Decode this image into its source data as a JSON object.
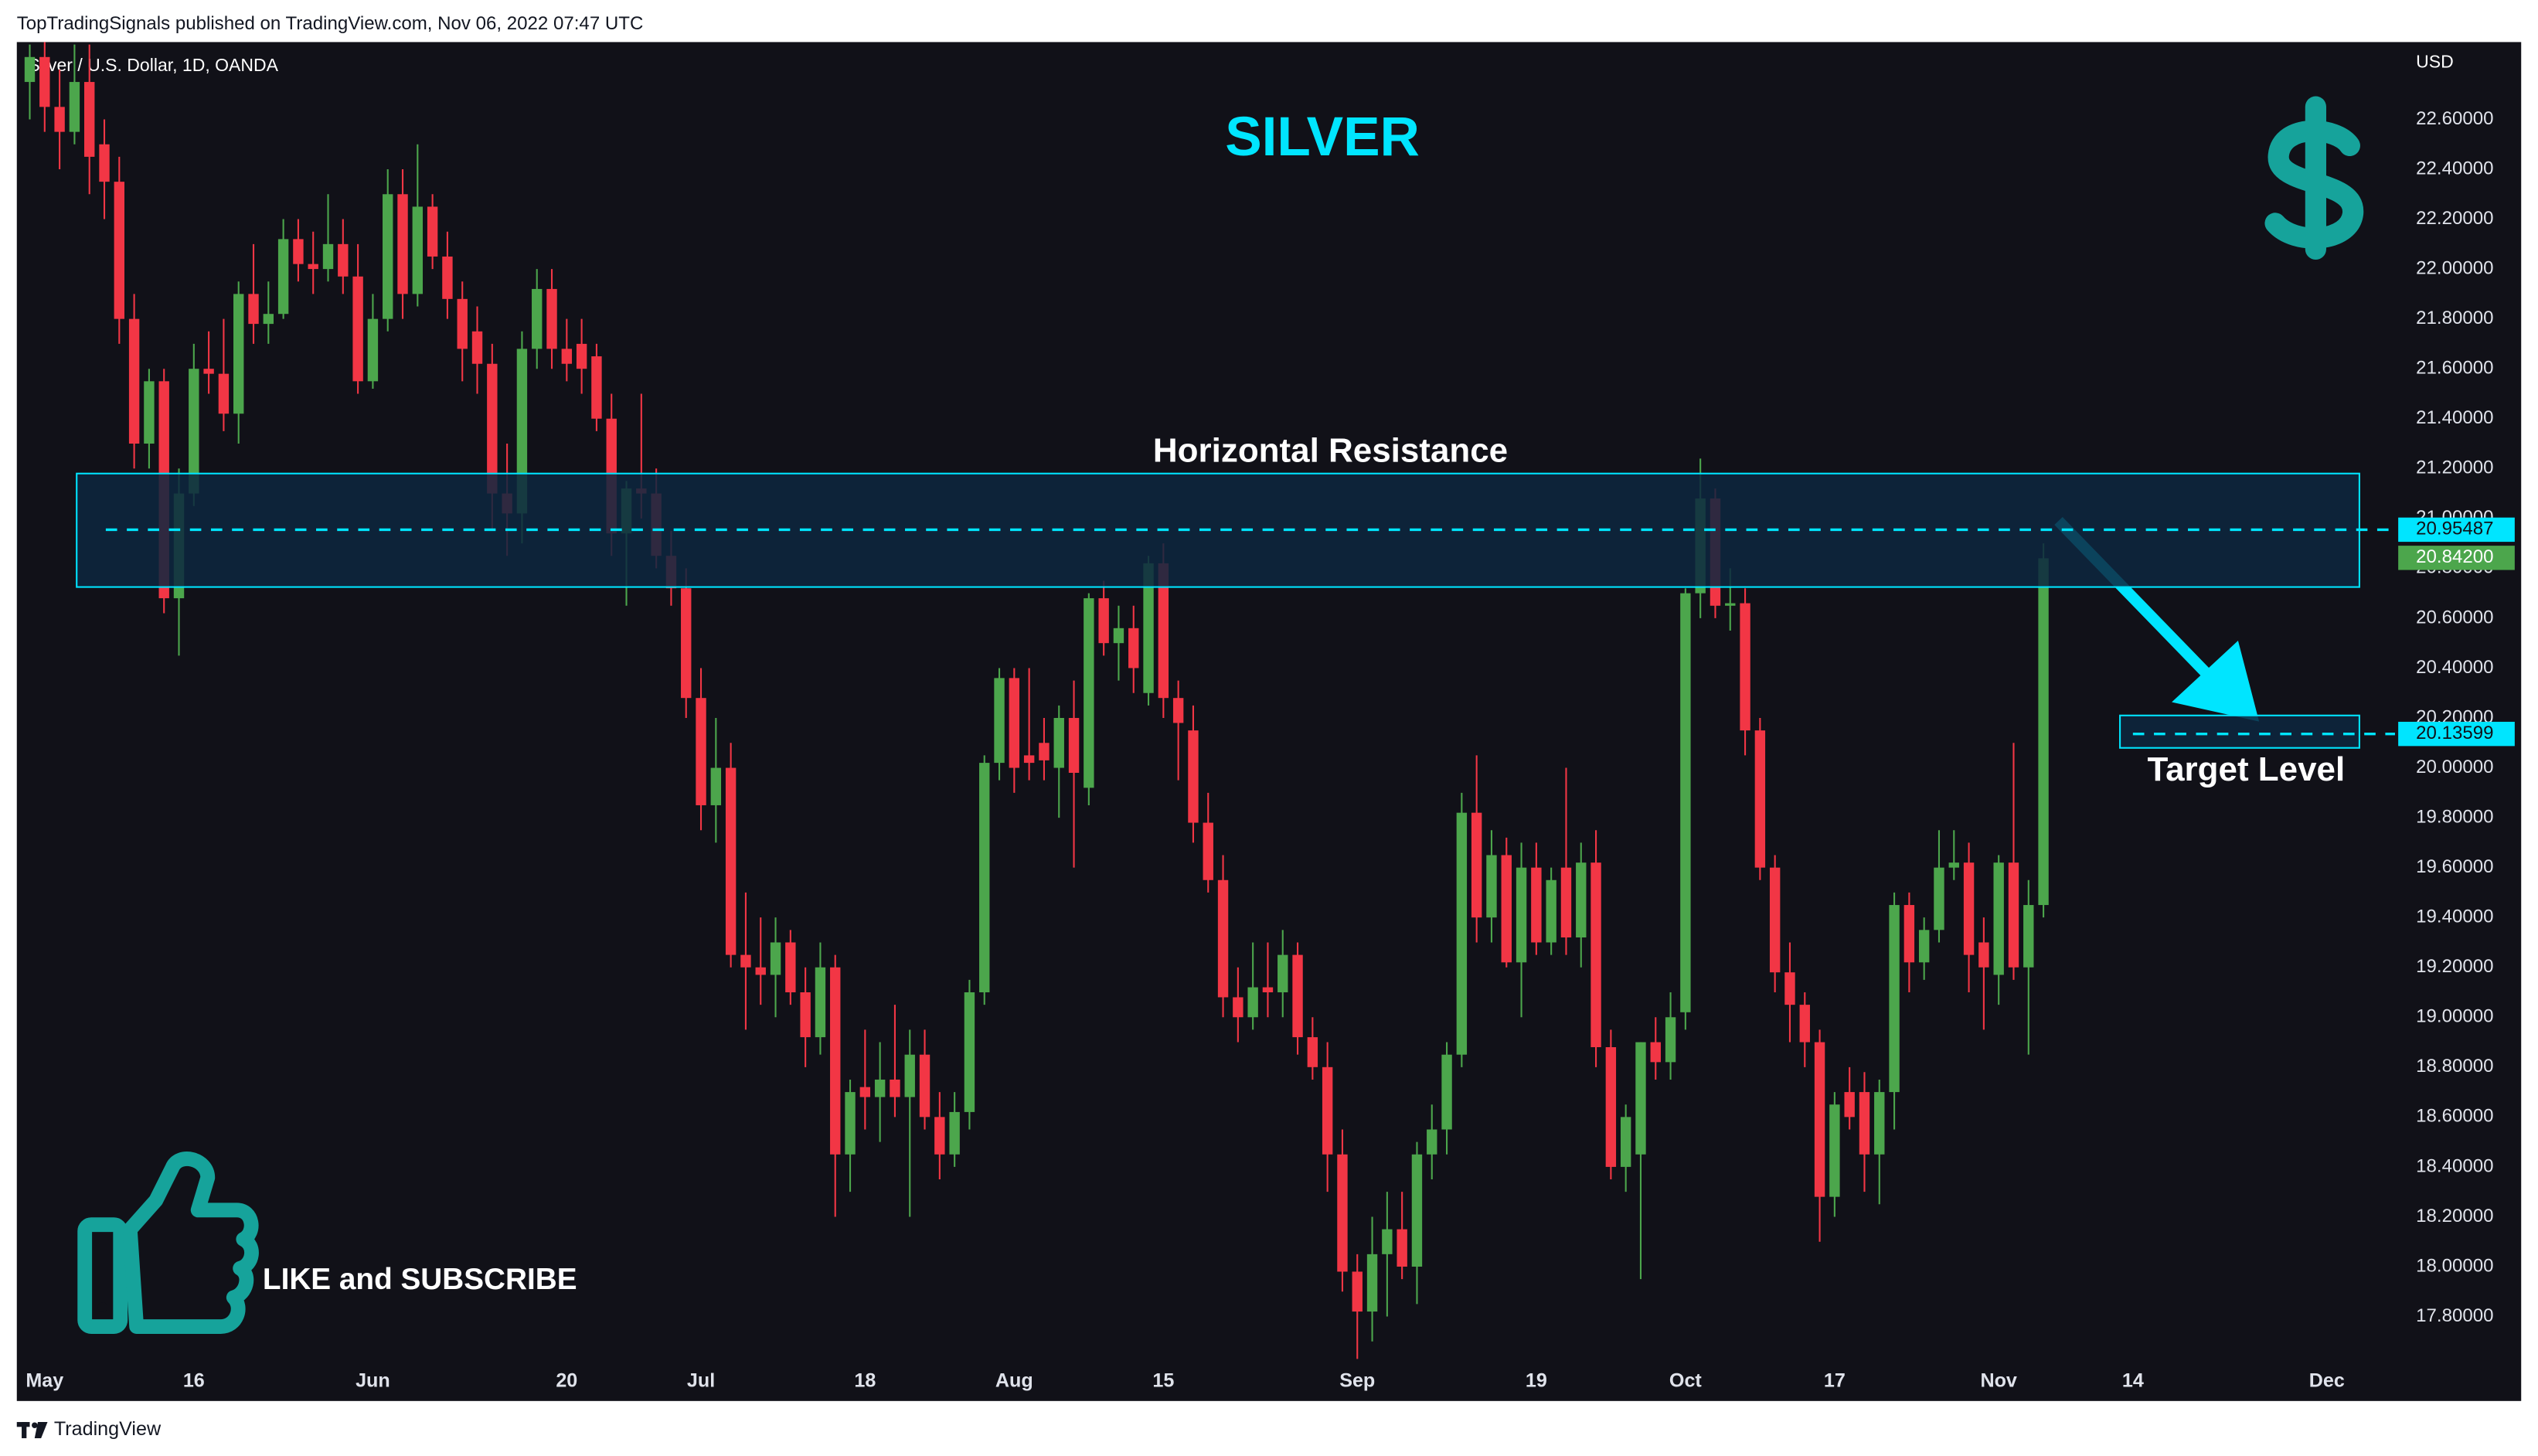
{
  "chart_data": {
    "type": "candlestick",
    "header": "TopTradingSignals published on TradingView.com, Nov 06, 2022 07:47 UTC",
    "symbol": "Silver / U.S. Dollar, 1D, OANDA",
    "y_axis_label": "USD",
    "footer": "TradingView",
    "title": "SILVER",
    "resistance_label": "Horizontal Resistance",
    "target_label": "Target Level",
    "call_to_action": "LIKE and SUBSCRIBE",
    "up_color": "#4ca64c",
    "down_color": "#f23645",
    "accent_color": "#00e5ff",
    "xlim": [
      -1,
      158
    ],
    "xticks": [
      {
        "value": 1,
        "label": "May"
      },
      {
        "value": 11,
        "label": "16"
      },
      {
        "value": 23,
        "label": "Jun"
      },
      {
        "value": 36,
        "label": "20"
      },
      {
        "value": 45,
        "label": "Jul"
      },
      {
        "value": 56,
        "label": "18"
      },
      {
        "value": 66,
        "label": "Aug"
      },
      {
        "value": 76,
        "label": "15"
      },
      {
        "value": 89,
        "label": "Sep"
      },
      {
        "value": 101,
        "label": "19"
      },
      {
        "value": 111,
        "label": "Oct"
      },
      {
        "value": 121,
        "label": "17"
      },
      {
        "value": 132,
        "label": "Nov"
      },
      {
        "value": 141,
        "label": "14"
      },
      {
        "value": 154,
        "label": "Dec"
      }
    ],
    "ylim": [
      17.63,
      22.91
    ],
    "yticks": [
      {
        "value": 22.6,
        "label": "22.60000"
      },
      {
        "value": 22.4,
        "label": "22.40000"
      },
      {
        "value": 22.2,
        "label": "22.20000"
      },
      {
        "value": 22.0,
        "label": "22.00000"
      },
      {
        "value": 21.8,
        "label": "21.80000"
      },
      {
        "value": 21.6,
        "label": "21.60000"
      },
      {
        "value": 21.4,
        "label": "21.40000"
      },
      {
        "value": 21.2,
        "label": "21.20000"
      },
      {
        "value": 21.0,
        "label": "21.00000"
      },
      {
        "value": 20.8,
        "label": "20.80000"
      },
      {
        "value": 20.6,
        "label": "20.60000"
      },
      {
        "value": 20.4,
        "label": "20.40000"
      },
      {
        "value": 20.2,
        "label": "20.20000"
      },
      {
        "value": 20.0,
        "label": "20.00000"
      },
      {
        "value": 19.8,
        "label": "19.80000"
      },
      {
        "value": 19.6,
        "label": "19.60000"
      },
      {
        "value": 19.4,
        "label": "19.40000"
      },
      {
        "value": 19.2,
        "label": "19.20000"
      },
      {
        "value": 19.0,
        "label": "19.00000"
      },
      {
        "value": 18.8,
        "label": "18.80000"
      },
      {
        "value": 18.6,
        "label": "18.60000"
      },
      {
        "value": 18.4,
        "label": "18.40000"
      },
      {
        "value": 18.2,
        "label": "18.20000"
      },
      {
        "value": 18.0,
        "label": "18.00000"
      },
      {
        "value": 17.8,
        "label": "17.80000"
      }
    ],
    "resistance_zone": [
      20.725,
      21.18
    ],
    "resistance_level": 20.95487,
    "last_price": {
      "value": 20.842,
      "label": "20.84200"
    },
    "target_zone": [
      20.08,
      20.21
    ],
    "target_level": 20.13599,
    "open": [
      22.75,
      22.85,
      22.65,
      22.55,
      22.75,
      22.5,
      22.35,
      21.8,
      21.3,
      21.55,
      20.68,
      21.1,
      21.6,
      21.58,
      21.42,
      21.9,
      21.78,
      21.82,
      22.12,
      22.02,
      22.0,
      22.1,
      21.97,
      21.55,
      21.8,
      22.3,
      21.9,
      22.25,
      22.05,
      21.88,
      21.75,
      21.62,
      21.1,
      21.02,
      21.68,
      21.92,
      21.68,
      21.7,
      21.65,
      21.4,
      20.94,
      21.12,
      21.1,
      20.85,
      20.72,
      20.28,
      19.85,
      20.0,
      19.25,
      19.2,
      19.17,
      19.3,
      19.1,
      18.92,
      19.2,
      18.45,
      18.72,
      18.68,
      18.75,
      18.68,
      18.85,
      18.6,
      18.45,
      18.62,
      19.1,
      20.02,
      20.36,
      20.05,
      20.1,
      20.0,
      20.2,
      19.92,
      20.68,
      20.5,
      20.56,
      20.3,
      20.82,
      20.28,
      20.15,
      19.78,
      19.55,
      19.08,
      19.0,
      19.12,
      19.1,
      19.25,
      18.92,
      18.8,
      18.45,
      17.98,
      17.82,
      18.05,
      18.15,
      18.0,
      18.45,
      18.55,
      18.85,
      19.82,
      19.4,
      19.65,
      19.22,
      19.6,
      19.3,
      19.6,
      19.32,
      19.62,
      18.88,
      18.4,
      18.45,
      18.9,
      18.82,
      19.02,
      20.7,
      21.08,
      20.65,
      20.66,
      20.15,
      19.6,
      19.18,
      19.05,
      18.9,
      18.28,
      18.7,
      18.7,
      18.45,
      18.7,
      19.45,
      19.22,
      19.35,
      19.6,
      19.62,
      19.3,
      19.17,
      19.62,
      19.2,
      19.45
    ],
    "high": [
      22.9,
      22.95,
      22.8,
      22.9,
      22.9,
      22.6,
      22.45,
      21.9,
      21.6,
      21.6,
      21.2,
      21.7,
      21.75,
      21.8,
      21.95,
      22.1,
      21.95,
      22.2,
      22.2,
      22.15,
      22.3,
      22.2,
      22.1,
      21.9,
      22.4,
      22.4,
      22.5,
      22.3,
      22.15,
      21.95,
      21.85,
      21.7,
      21.3,
      21.75,
      22.0,
      22.0,
      21.8,
      21.8,
      21.7,
      21.5,
      21.15,
      21.5,
      21.2,
      20.95,
      20.8,
      20.4,
      20.2,
      20.1,
      19.5,
      19.4,
      19.4,
      19.35,
      19.2,
      19.3,
      19.25,
      18.75,
      18.95,
      18.9,
      19.05,
      18.95,
      18.95,
      18.7,
      18.7,
      19.15,
      20.05,
      20.4,
      20.4,
      20.4,
      20.2,
      20.25,
      20.35,
      20.7,
      20.75,
      20.65,
      20.65,
      20.85,
      20.9,
      20.35,
      20.25,
      19.9,
      19.65,
      19.2,
      19.3,
      19.3,
      19.35,
      19.3,
      19.0,
      18.9,
      18.55,
      18.05,
      18.2,
      18.3,
      18.3,
      18.5,
      18.65,
      18.9,
      19.9,
      20.05,
      19.75,
      19.72,
      19.7,
      19.7,
      19.6,
      20.0,
      19.7,
      19.75,
      18.95,
      18.65,
      18.9,
      19.0,
      19.1,
      20.72,
      21.24,
      21.12,
      20.8,
      20.72,
      20.2,
      19.65,
      19.3,
      19.1,
      18.95,
      18.7,
      18.8,
      18.78,
      18.75,
      19.5,
      19.5,
      19.4,
      19.75,
      19.75,
      19.7,
      19.4,
      19.65,
      20.1,
      19.55,
      20.9
    ],
    "low": [
      22.6,
      22.55,
      22.4,
      22.5,
      22.3,
      22.2,
      21.7,
      21.2,
      21.2,
      20.62,
      20.45,
      21.05,
      21.5,
      21.35,
      21.3,
      21.7,
      21.7,
      21.8,
      21.95,
      21.9,
      21.95,
      21.9,
      21.5,
      21.52,
      21.75,
      21.8,
      21.85,
      22.0,
      21.8,
      21.55,
      21.5,
      20.95,
      20.85,
      20.9,
      21.6,
      21.6,
      21.55,
      21.5,
      21.35,
      20.85,
      20.65,
      21.0,
      20.8,
      20.65,
      20.2,
      19.75,
      19.7,
      19.2,
      18.95,
      19.05,
      19.0,
      19.05,
      18.8,
      18.85,
      18.2,
      18.3,
      18.55,
      18.5,
      18.6,
      18.2,
      18.55,
      18.35,
      18.4,
      18.55,
      19.05,
      19.95,
      19.9,
      19.95,
      19.95,
      19.8,
      19.6,
      19.85,
      20.45,
      20.35,
      20.3,
      20.25,
      20.2,
      19.95,
      19.7,
      19.5,
      19.0,
      18.9,
      18.95,
      19.0,
      19.0,
      18.85,
      18.75,
      18.3,
      17.9,
      17.56,
      17.7,
      17.8,
      17.95,
      17.85,
      18.35,
      18.45,
      18.8,
      19.3,
      19.3,
      19.2,
      19.0,
      19.25,
      19.25,
      19.25,
      19.2,
      18.8,
      18.35,
      18.3,
      17.95,
      18.75,
      18.75,
      18.95,
      20.6,
      20.6,
      20.55,
      20.05,
      19.55,
      19.1,
      18.9,
      18.8,
      18.1,
      18.2,
      18.55,
      18.3,
      18.25,
      18.55,
      19.1,
      19.15,
      19.3,
      19.55,
      19.1,
      18.95,
      19.05,
      19.15,
      18.85,
      19.4
    ],
    "close": [
      22.85,
      22.65,
      22.55,
      22.75,
      22.45,
      22.35,
      21.8,
      21.3,
      21.55,
      20.68,
      21.1,
      21.6,
      21.58,
      21.42,
      21.9,
      21.78,
      21.82,
      22.12,
      22.02,
      22.0,
      22.1,
      21.97,
      21.55,
      21.8,
      22.3,
      21.9,
      22.25,
      22.05,
      21.88,
      21.68,
      21.62,
      21.1,
      21.02,
      21.68,
      21.92,
      21.68,
      21.62,
      21.6,
      21.4,
      20.94,
      21.12,
      21.1,
      20.85,
      20.72,
      20.28,
      19.85,
      20.0,
      19.25,
      19.2,
      19.17,
      19.3,
      19.1,
      18.92,
      19.2,
      18.45,
      18.7,
      18.68,
      18.75,
      18.68,
      18.85,
      18.6,
      18.45,
      18.62,
      19.1,
      20.02,
      20.36,
      20.0,
      20.02,
      20.03,
      20.2,
      19.98,
      20.68,
      20.5,
      20.56,
      20.4,
      20.82,
      20.28,
      20.18,
      19.78,
      19.55,
      19.08,
      19.0,
      19.12,
      19.1,
      19.25,
      18.92,
      18.8,
      18.45,
      17.98,
      17.82,
      18.05,
      18.15,
      18.0,
      18.45,
      18.55,
      18.85,
      19.82,
      19.4,
      19.65,
      19.22,
      19.6,
      19.3,
      19.55,
      19.32,
      19.62,
      18.88,
      18.4,
      18.6,
      18.9,
      18.82,
      19.0,
      20.7,
      21.08,
      20.65,
      20.66,
      20.15,
      19.6,
      19.18,
      19.05,
      18.9,
      18.28,
      18.65,
      18.6,
      18.45,
      18.7,
      19.45,
      19.22,
      19.35,
      19.6,
      19.62,
      19.25,
      19.2,
      19.62,
      19.2,
      19.45,
      20.84
    ]
  }
}
